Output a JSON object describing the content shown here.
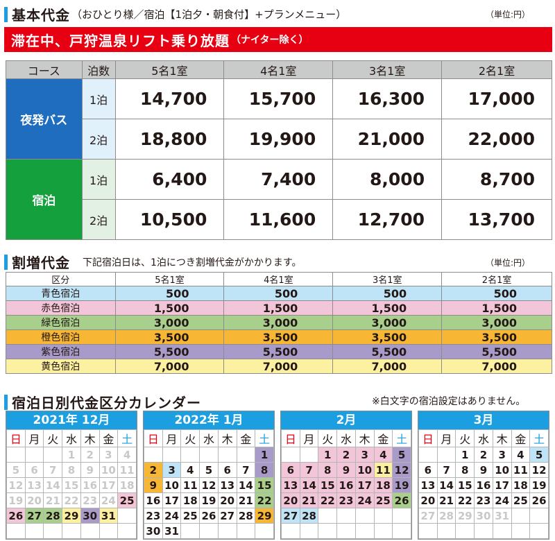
{
  "basic": {
    "title": "基本代金",
    "subtitle": "（おひとり様／宿泊【1泊夕・朝食付】+プランメニュー）",
    "unit": "（単位:円）",
    "banner_main": "滞在中、戸狩温泉リフト乗り放題",
    "banner_small": "（ナイター除く）",
    "headers": [
      "コース",
      "泊数",
      "5名1室",
      "4名1室",
      "3名1室",
      "2名1室"
    ],
    "groups": [
      {
        "course": "夜発バス",
        "rows": [
          {
            "nights": "1泊",
            "prices": [
              "14,700",
              "15,700",
              "16,300",
              "17,000"
            ]
          },
          {
            "nights": "2泊",
            "prices": [
              "18,800",
              "19,900",
              "21,000",
              "22,000"
            ]
          }
        ]
      },
      {
        "course": "宿泊",
        "rows": [
          {
            "nights": "1泊",
            "prices": [
              "6,400",
              "7,400",
              "8,000",
              "8,700"
            ]
          },
          {
            "nights": "2泊",
            "prices": [
              "10,500",
              "11,600",
              "12,700",
              "13,700"
            ]
          }
        ]
      }
    ]
  },
  "surcharge": {
    "title": "割増代金",
    "note": "下記宿泊日は、1泊につき割増代金がかかります。",
    "unit": "（単位:円）",
    "headers": [
      "区分",
      "5名1室",
      "4名1室",
      "3名1室",
      "2名1室"
    ],
    "rows": [
      {
        "name": "青色宿泊",
        "color": "#BFE3F7",
        "values": [
          "500",
          "500",
          "500",
          "500"
        ]
      },
      {
        "name": "赤色宿泊",
        "color": "#F3C5D8",
        "values": [
          "1,500",
          "1,500",
          "1,500",
          "1,500"
        ]
      },
      {
        "name": "緑色宿泊",
        "color": "#A9CF8C",
        "values": [
          "3,000",
          "3,000",
          "3,000",
          "3,000"
        ]
      },
      {
        "name": "橙色宿泊",
        "color": "#F7B633",
        "values": [
          "3,500",
          "3,500",
          "3,500",
          "3,500"
        ]
      },
      {
        "name": "紫色宿泊",
        "color": "#A89AC9",
        "values": [
          "5,500",
          "5,500",
          "5,500",
          "5,500"
        ]
      },
      {
        "name": "黄色宿泊",
        "color": "#FBF1A0",
        "values": [
          "7,000",
          "7,000",
          "7,000",
          "7,000"
        ]
      }
    ]
  },
  "calendar": {
    "title": "宿泊日別代金区分カレンダー",
    "note": "※白文字の宿泊設定はありません。",
    "weekdays": [
      "日",
      "月",
      "火",
      "水",
      "木",
      "金",
      "土"
    ],
    "legend_colors": {
      "blue": "#BFE3F7",
      "red": "#F3C5D8",
      "green": "#A9CF8C",
      "orange": "#F7B633",
      "purple": "#A89AC9",
      "yellow": "#FBF1A0"
    },
    "months": [
      {
        "label": "2021年 12月",
        "offset": 3,
        "days": 31,
        "cats": {
          "25": "red",
          "26": "red",
          "27": "green",
          "28": "green",
          "29": "yellow",
          "30": "purple",
          "31": "yellow"
        },
        "white": [
          1,
          2,
          3,
          4,
          5,
          6,
          7,
          8,
          9,
          10,
          11,
          12,
          13,
          14,
          15,
          16,
          17,
          18,
          19,
          20,
          21,
          22,
          23,
          24
        ]
      },
      {
        "label": "2022年 1月",
        "offset": 6,
        "days": 31,
        "cats": {
          "1": "purple",
          "2": "orange",
          "3": "blue",
          "8": "purple",
          "9": "orange",
          "15": "green",
          "22": "green",
          "29": "orange"
        },
        "white": []
      },
      {
        "label": "2月",
        "offset": 2,
        "days": 28,
        "cats": {
          "1": "red",
          "2": "red",
          "3": "red",
          "4": "red",
          "5": "purple",
          "6": "red",
          "7": "red",
          "8": "red",
          "9": "red",
          "10": "red",
          "11": "yellow",
          "12": "purple",
          "13": "red",
          "14": "red",
          "15": "red",
          "16": "red",
          "17": "red",
          "18": "red",
          "19": "purple",
          "20": "red",
          "21": "red",
          "22": "red",
          "23": "red",
          "24": "red",
          "25": "red",
          "26": "green",
          "27": "blue",
          "28": "blue"
        },
        "white": []
      },
      {
        "label": "3月",
        "offset": 2,
        "days": 31,
        "cats": {
          "5": "blue"
        },
        "white": [
          27,
          28,
          29,
          30,
          31
        ]
      }
    ]
  }
}
